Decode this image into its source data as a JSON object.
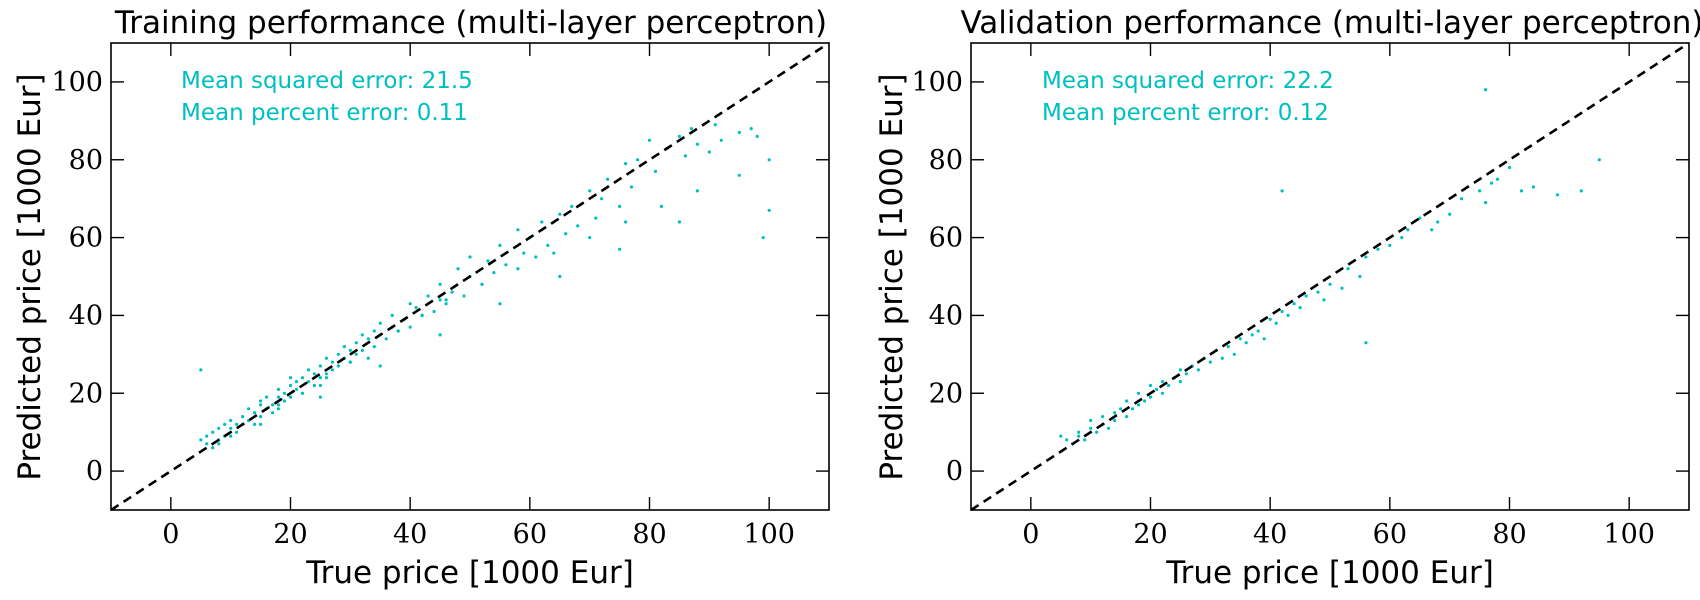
{
  "colors": {
    "points": "#00bfbf",
    "annotation": "#00bfbf",
    "diagonal": "#000000"
  },
  "chart_data": [
    {
      "type": "scatter",
      "title": "Training performance (multi-layer perceptron)",
      "xlabel": "True price [1000 Eur]",
      "ylabel": "Predicted price [1000 Eur]",
      "xlim": [
        -10,
        110
      ],
      "ylim": [
        -10,
        110
      ],
      "xticks": [
        0,
        20,
        40,
        60,
        80,
        100
      ],
      "yticks": [
        0,
        20,
        40,
        60,
        80,
        100
      ],
      "grid": false,
      "reference_line": "y = x, dashed",
      "annotations": [
        "Mean squared error: 21.5",
        "Mean percent error: 0.11"
      ],
      "series": [
        {
          "x": [
            5,
            6,
            6,
            7,
            7,
            8,
            8,
            8,
            9,
            9,
            10,
            10,
            10,
            11,
            11,
            12,
            12,
            13,
            13,
            14,
            14,
            15,
            15,
            15,
            16,
            16,
            17,
            17,
            18,
            18,
            18,
            19,
            19,
            20,
            20,
            20,
            21,
            21,
            22,
            22,
            23,
            23,
            24,
            24,
            25,
            25,
            25,
            26,
            26,
            27,
            27,
            28,
            28,
            29,
            29,
            30,
            30,
            31,
            31,
            32,
            32,
            33,
            33,
            34,
            35,
            35,
            36,
            37,
            37,
            38,
            39,
            40,
            40,
            41,
            42,
            43,
            44,
            45,
            45,
            46,
            47,
            48,
            49,
            50,
            50,
            52,
            53,
            54,
            55,
            56,
            58,
            59,
            60,
            61,
            62,
            63,
            65,
            66,
            67,
            68,
            70,
            71,
            72,
            73,
            75,
            76,
            77,
            78,
            80,
            81,
            83,
            85,
            86,
            87,
            88,
            90,
            91,
            92,
            95,
            97,
            98,
            99,
            100,
            5,
            12,
            18,
            22,
            26,
            30,
            34,
            38,
            42,
            46,
            52,
            58,
            64,
            70,
            76,
            82,
            88,
            95,
            100,
            15,
            25,
            35,
            45,
            55,
            65,
            75,
            85
          ],
          "y": [
            26,
            7,
            9,
            6,
            10,
            8,
            11,
            7,
            9,
            12,
            11,
            9,
            13,
            12,
            10,
            14,
            12,
            13,
            16,
            15,
            12,
            17,
            14,
            18,
            16,
            19,
            17,
            15,
            19,
            21,
            17,
            20,
            18,
            22,
            19,
            24,
            21,
            23,
            20,
            24,
            23,
            26,
            22,
            25,
            27,
            24,
            22,
            29,
            25,
            28,
            26,
            30,
            27,
            29,
            32,
            28,
            31,
            33,
            30,
            35,
            31,
            34,
            29,
            36,
            35,
            38,
            34,
            37,
            40,
            36,
            39,
            43,
            37,
            42,
            40,
            45,
            41,
            44,
            48,
            43,
            46,
            52,
            45,
            50,
            55,
            48,
            54,
            51,
            58,
            53,
            62,
            56,
            60,
            55,
            64,
            58,
            66,
            61,
            68,
            63,
            72,
            65,
            70,
            75,
            68,
            79,
            73,
            80,
            85,
            77,
            83,
            86,
            81,
            88,
            84,
            82,
            89,
            85,
            87,
            88,
            86,
            60,
            67,
            8,
            12,
            16,
            20,
            24,
            28,
            32,
            36,
            40,
            44,
            48,
            52,
            56,
            60,
            64,
            68,
            72,
            76,
            80,
            12,
            19,
            27,
            35,
            43,
            50,
            57,
            64
          ]
        }
      ]
    },
    {
      "type": "scatter",
      "title": "Validation performance (multi-layer perceptron)",
      "xlabel": "True price [1000 Eur]",
      "ylabel": "Predicted price [1000 Eur]",
      "xlim": [
        -10,
        110
      ],
      "ylim": [
        -10,
        110
      ],
      "xticks": [
        0,
        20,
        40,
        60,
        80,
        100
      ],
      "yticks": [
        0,
        20,
        40,
        60,
        80,
        100
      ],
      "grid": false,
      "reference_line": "y = x, dashed",
      "annotations": [
        "Mean squared error: 22.2",
        "Mean percent error: 0.12"
      ],
      "series": [
        {
          "x": [
            5,
            6,
            7,
            8,
            8,
            9,
            10,
            10,
            11,
            12,
            12,
            13,
            14,
            14,
            15,
            16,
            16,
            17,
            18,
            18,
            19,
            20,
            20,
            21,
            22,
            22,
            23,
            24,
            25,
            25,
            26,
            27,
            28,
            29,
            30,
            31,
            32,
            33,
            34,
            35,
            36,
            37,
            38,
            39,
            40,
            41,
            42,
            43,
            44,
            45,
            46,
            48,
            49,
            50,
            52,
            53,
            55,
            56,
            58,
            60,
            62,
            63,
            65,
            67,
            68,
            70,
            72,
            75,
            76,
            77,
            78,
            80,
            82,
            84,
            88,
            92,
            95,
            76,
            42,
            56
          ],
          "y": [
            9,
            8,
            7,
            10,
            9,
            8,
            11,
            13,
            10,
            12,
            14,
            11,
            15,
            13,
            16,
            14,
            18,
            16,
            17,
            20,
            18,
            19,
            22,
            21,
            20,
            23,
            22,
            24,
            26,
            23,
            25,
            27,
            26,
            29,
            28,
            31,
            29,
            32,
            30,
            34,
            33,
            35,
            36,
            34,
            39,
            38,
            41,
            40,
            43,
            42,
            45,
            46,
            44,
            48,
            47,
            52,
            50,
            55,
            57,
            58,
            60,
            62,
            65,
            62,
            64,
            66,
            70,
            72,
            69,
            74,
            75,
            78,
            72,
            73,
            71,
            72,
            80,
            98,
            72,
            33
          ]
        }
      ]
    }
  ]
}
